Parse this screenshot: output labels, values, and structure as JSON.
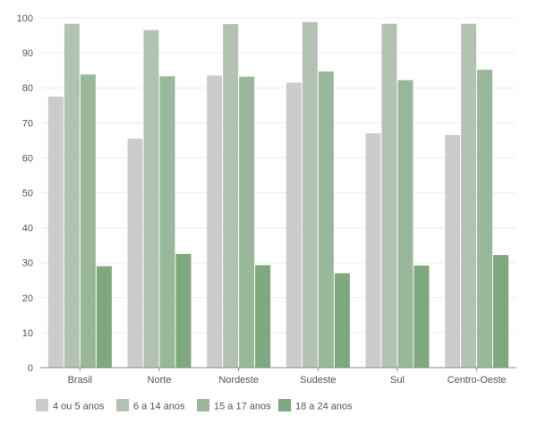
{
  "chart_data": {
    "type": "bar",
    "categories": [
      "Brasil",
      "Norte",
      "Nordeste",
      "Sudeste",
      "Sul",
      "Centro-Oeste"
    ],
    "series": [
      {
        "name": "4 ou 5 anos",
        "color": "#cccccc",
        "values": [
          77.5,
          65.5,
          83.5,
          81.5,
          67.0,
          66.5
        ]
      },
      {
        "name": "6 a 14 anos",
        "color": "#b3c3b3",
        "values": [
          98.3,
          96.5,
          98.2,
          98.8,
          98.3,
          98.3
        ]
      },
      {
        "name": "15 a 17 anos",
        "color": "#99b899",
        "values": [
          83.8,
          83.3,
          83.2,
          84.7,
          82.2,
          85.2
        ]
      },
      {
        "name": "18 a 24 anos",
        "color": "#7ea87e",
        "values": [
          29.0,
          32.5,
          29.3,
          27.0,
          29.2,
          32.2
        ]
      }
    ],
    "ylim": [
      0,
      100
    ],
    "yticks": [
      "0",
      "10",
      "20",
      "30",
      "40",
      "50",
      "60",
      "70",
      "80",
      "90",
      "100"
    ],
    "grid": true,
    "legend": "bottom-left"
  }
}
